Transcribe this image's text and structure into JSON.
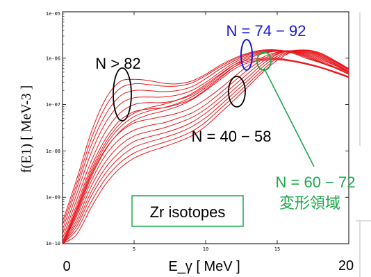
{
  "chart_data": {
    "type": "line",
    "title": "",
    "xlabel": "E_γ [ MeV ]",
    "ylabel": "f(E1) [ MeV-3 ]",
    "x_range": [
      0,
      20
    ],
    "y_range": [
      1e-10,
      1e-05
    ],
    "y_scale": "log",
    "grid": false,
    "legend": "none",
    "x_ticks": [
      "5",
      "10",
      "15"
    ],
    "y_ticks": [
      "1e-05",
      "1e-06",
      "1e-07",
      "1e-08",
      "1e-09",
      "1e-10"
    ],
    "x_end_labels": [
      "0",
      "20"
    ],
    "line_color": "#e8161b",
    "groups": [
      {
        "label": "N > 82",
        "color": "#000000",
        "series": [
          {
            "x": [
              0,
              1,
              2,
              3,
              4,
              5,
              6,
              7,
              8,
              9,
              10,
              11,
              12,
              13,
              14,
              15,
              16,
              17,
              18,
              19,
              20
            ],
            "y": [
              3e-10,
              2.5e-09,
              2.5e-08,
              1.3e-07,
              3.1e-07,
              3.5e-07,
              3.3e-07,
              2.9e-07,
              2.8e-07,
              3.2e-07,
              4.5e-07,
              7e-07,
              1e-06,
              1.3e-06,
              1.5e-06,
              1.5e-06,
              1.3e-06,
              1e-06,
              8e-07,
              6.5e-07,
              5e-07
            ]
          },
          {
            "x": [
              0,
              1,
              2,
              3,
              4,
              5,
              6,
              7,
              8,
              9,
              10,
              11,
              12,
              13,
              14,
              15,
              16,
              17,
              18,
              19,
              20
            ],
            "y": [
              2.5e-10,
              2e-09,
              1.8e-08,
              9e-08,
              2.2e-07,
              2.8e-07,
              2.7e-07,
              2.5e-07,
              2.5e-07,
              2.9e-07,
              4.2e-07,
              6.5e-07,
              9.5e-07,
              1.25e-06,
              1.45e-06,
              1.5e-06,
              1.35e-06,
              1.05e-06,
              8e-07,
              6.2e-07,
              4.8e-07
            ]
          },
          {
            "x": [
              0,
              1,
              2,
              3,
              4,
              5,
              6,
              7,
              8,
              9,
              10,
              11,
              12,
              13,
              14,
              15,
              16,
              17,
              18,
              19,
              20
            ],
            "y": [
              2e-10,
              1.6e-09,
              1.3e-08,
              6e-08,
              1.5e-07,
              2e-07,
              2e-07,
              1.9e-07,
              2e-07,
              2.4e-07,
              3.6e-07,
              5.8e-07,
              8.8e-07,
              1.2e-06,
              1.4e-06,
              1.48e-06,
              1.35e-06,
              1.1e-06,
              8.2e-07,
              6.2e-07,
              4.6e-07
            ]
          },
          {
            "x": [
              0,
              1,
              2,
              3,
              4,
              5,
              6,
              7,
              8,
              9,
              10,
              11,
              12,
              13,
              14,
              15,
              16,
              17,
              18,
              19,
              20
            ],
            "y": [
              1.6e-10,
              1.2e-09,
              9e-09,
              4e-08,
              1e-07,
              1.4e-07,
              1.45e-07,
              1.45e-07,
              1.6e-07,
              2e-07,
              3e-07,
              5e-07,
              8e-07,
              1.12e-06,
              1.35e-06,
              1.45e-06,
              1.38e-06,
              1.15e-06,
              8.5e-07,
              6.2e-07,
              4.5e-07
            ]
          }
        ]
      },
      {
        "label": "N = 74 − 92",
        "color": "#1515e0",
        "series": [
          {
            "x": [
              0,
              1,
              2,
              3,
              4,
              5,
              6,
              7,
              8,
              9,
              10,
              11,
              12,
              13,
              14,
              15,
              16,
              17,
              18,
              19,
              20
            ],
            "y": [
              1.3e-10,
              9e-10,
              6e-09,
              2.6e-08,
              6.5e-08,
              1e-07,
              1.1e-07,
              1.1e-07,
              1.25e-07,
              1.6e-07,
              2.5e-07,
              4.3e-07,
              7.2e-07,
              1.05e-06,
              1.3e-06,
              1.45e-06,
              1.4e-06,
              1.2e-06,
              9e-07,
              6.5e-07,
              4.6e-07
            ]
          },
          {
            "x": [
              0,
              1,
              2,
              3,
              4,
              5,
              6,
              7,
              8,
              9,
              10,
              11,
              12,
              13,
              14,
              15,
              16,
              17,
              18,
              19,
              20
            ],
            "y": [
              1.1e-10,
              7e-10,
              4.5e-09,
              1.8e-08,
              4.5e-08,
              7e-08,
              8e-08,
              8.5e-08,
              1e-07,
              1.3e-07,
              2.1e-07,
              3.7e-07,
              6.5e-07,
              9.8e-07,
              1.25e-06,
              1.42e-06,
              1.42e-06,
              1.25e-06,
              9.5e-07,
              7e-07,
              5e-07
            ]
          }
        ]
      },
      {
        "label": "N = 40 − 58",
        "color": "#000000",
        "series": [
          {
            "x": [
              0,
              1,
              2,
              3,
              4,
              5,
              6,
              7,
              8,
              9,
              10,
              11,
              12,
              13,
              14,
              15,
              16,
              17,
              18,
              19,
              20
            ],
            "y": [
              1e-10,
              5e-10,
              3e-09,
              1.1e-08,
              2.5e-08,
              4e-08,
              4.8e-08,
              5.5e-08,
              6.5e-08,
              8.5e-08,
              1.3e-07,
              2.2e-07,
              4e-07,
              7e-07,
              1.05e-06,
              1.35e-06,
              1.45e-06,
              1.3e-06,
              1e-06,
              7.2e-07,
              5e-07
            ]
          },
          {
            "x": [
              0,
              1,
              2,
              3,
              4,
              5,
              6,
              7,
              8,
              9,
              10,
              11,
              12,
              13,
              14,
              15,
              16,
              17,
              18,
              19,
              20
            ],
            "y": [
              1e-10,
              4e-10,
              2.2e-09,
              8e-09,
              1.8e-08,
              2.8e-08,
              3.5e-08,
              4e-08,
              5e-08,
              6.5e-08,
              1e-07,
              1.75e-07,
              3.2e-07,
              5.8e-07,
              9.5e-07,
              1.3e-06,
              1.45e-06,
              1.35e-06,
              1.05e-06,
              7.5e-07,
              5e-07
            ]
          },
          {
            "x": [
              0,
              1,
              2,
              3,
              4,
              5,
              6,
              7,
              8,
              9,
              10,
              11,
              12,
              13,
              14,
              15,
              16,
              17,
              18,
              19,
              20
            ],
            "y": [
              1e-10,
              3.3e-10,
              1.7e-09,
              5.8e-09,
              1.3e-08,
              2.1e-08,
              2.6e-08,
              3.1e-08,
              3.9e-08,
              5.2e-08,
              8e-08,
              1.4e-07,
              2.6e-07,
              4.8e-07,
              8.5e-07,
              1.25e-06,
              1.45e-06,
              1.4e-06,
              1.1e-06,
              7.8e-07,
              5.2e-07
            ]
          },
          {
            "x": [
              0,
              1,
              2,
              3,
              4,
              5,
              6,
              7,
              8,
              9,
              10,
              11,
              12,
              13,
              14,
              15,
              16,
              17,
              18,
              19,
              20
            ],
            "y": [
              1e-10,
              2.8e-10,
              1.3e-09,
              4.3e-09,
              9.5e-09,
              1.6e-08,
              2e-08,
              2.4e-08,
              3e-08,
              4.1e-08,
              6.5e-08,
              1.15e-07,
              2.15e-07,
              4e-07,
              7.5e-07,
              1.2e-06,
              1.45e-06,
              1.45e-06,
              1.15e-06,
              8.2e-07,
              5.5e-07
            ]
          },
          {
            "x": [
              0,
              1,
              2,
              3,
              4,
              5,
              6,
              7,
              8,
              9,
              10,
              11,
              12,
              13,
              14,
              15,
              16,
              17,
              18,
              19,
              20
            ],
            "y": [
              1e-10,
              2.4e-10,
              1.05e-09,
              3.3e-09,
              7.2e-09,
              1.2e-08,
              1.55e-08,
              1.9e-08,
              2.4e-08,
              3.3e-08,
              5.2e-08,
              9.5e-08,
              1.8e-07,
              3.4e-07,
              6.5e-07,
              1.1e-06,
              1.42e-06,
              1.48e-06,
              1.2e-06,
              8.5e-07,
              5.6e-07
            ]
          },
          {
            "x": [
              0,
              1,
              2,
              3,
              4,
              5,
              6,
              7,
              8,
              9,
              10,
              11,
              12,
              13,
              14,
              15,
              16,
              17,
              18,
              19,
              20
            ],
            "y": [
              1e-10,
              2e-10,
              8e-10,
              2.5e-09,
              5.5e-09,
              9e-09,
              1.2e-08,
              1.5e-08,
              1.9e-08,
              2.6e-08,
              4.2e-08,
              8e-08,
              1.5e-07,
              2.9e-07,
              5.6e-07,
              1e-06,
              1.38e-06,
              1.5e-06,
              1.25e-06,
              8.8e-07,
              5.8e-07
            ]
          },
          {
            "x": [
              0,
              1,
              2,
              3,
              4,
              5,
              6,
              7,
              8,
              9,
              10,
              11,
              12,
              13,
              14,
              15,
              16,
              17,
              18,
              19,
              20
            ],
            "y": [
              1e-10,
              1.6e-10,
              6e-10,
              1.9e-09,
              4.2e-09,
              7e-09,
              9.5e-09,
              1.2e-08,
              1.55e-08,
              2.1e-08,
              3.4e-08,
              6.5e-08,
              1.25e-07,
              2.5e-07,
              5e-07,
              9e-07,
              1.35e-06,
              1.5e-06,
              1.3e-06,
              9e-07,
              6e-07
            ]
          }
        ]
      },
      {
        "label": "N = 60 − 72",
        "sublabel": "変形領域",
        "color": "#1aa84a",
        "series": [
          {
            "x": [
              0,
              1,
              2,
              3,
              4,
              5,
              6,
              7,
              8,
              9,
              10,
              11,
              12,
              13,
              14,
              15,
              16,
              17,
              18,
              19,
              20
            ],
            "y": [
              1e-10,
              6e-10,
              3.8e-09,
              1.5e-08,
              3.8e-08,
              6.5e-08,
              8.5e-08,
              1e-07,
              1.25e-07,
              1.7e-07,
              2.7e-07,
              4.5e-07,
              7.2e-07,
              9.2e-07,
              1e-06,
              1e-06,
              9e-07,
              7.8e-07,
              6.5e-07,
              5.2e-07,
              4e-07
            ]
          },
          {
            "x": [
              0,
              1,
              2,
              3,
              4,
              5,
              6,
              7,
              8,
              9,
              10,
              11,
              12,
              13,
              14,
              15,
              16,
              17,
              18,
              19,
              20
            ],
            "y": [
              1e-10,
              5.5e-10,
              3.3e-09,
              1.3e-08,
              3.2e-08,
              5.5e-08,
              7.2e-08,
              8.5e-08,
              1.05e-07,
              1.45e-07,
              2.3e-07,
              3.9e-07,
              6.5e-07,
              8.6e-07,
              9.5e-07,
              9.6e-07,
              8.8e-07,
              7.6e-07,
              6.3e-07,
              5e-07,
              3.9e-07
            ]
          },
          {
            "x": [
              0,
              1,
              2,
              3,
              4,
              5,
              6,
              7,
              8,
              9,
              10,
              11,
              12,
              13,
              14,
              15,
              16,
              17,
              18,
              19,
              20
            ],
            "y": [
              1e-10,
              4.5e-10,
              2.7e-09,
              1.05e-08,
              2.6e-08,
              4.5e-08,
              6e-08,
              7.2e-08,
              9e-08,
              1.25e-07,
              2e-07,
              3.4e-07,
              5.8e-07,
              8e-07,
              9e-07,
              9.2e-07,
              8.6e-07,
              7.4e-07,
              6.2e-07,
              4.9e-07,
              3.8e-07
            ]
          }
        ]
      }
    ]
  },
  "annotations": {
    "n_gt_82": "N > 82",
    "n_74_92": "N = 74 − 92",
    "n_40_58": "N = 40 − 58",
    "n_60_72": "N = 60 − 72",
    "deformed_region": "変形領域",
    "zr_isotopes": "Zr isotopes"
  },
  "colors": {
    "curve": "#e8161b",
    "blue_group": "#1515e0",
    "green_group": "#1aa84a",
    "black_group": "#000000"
  }
}
